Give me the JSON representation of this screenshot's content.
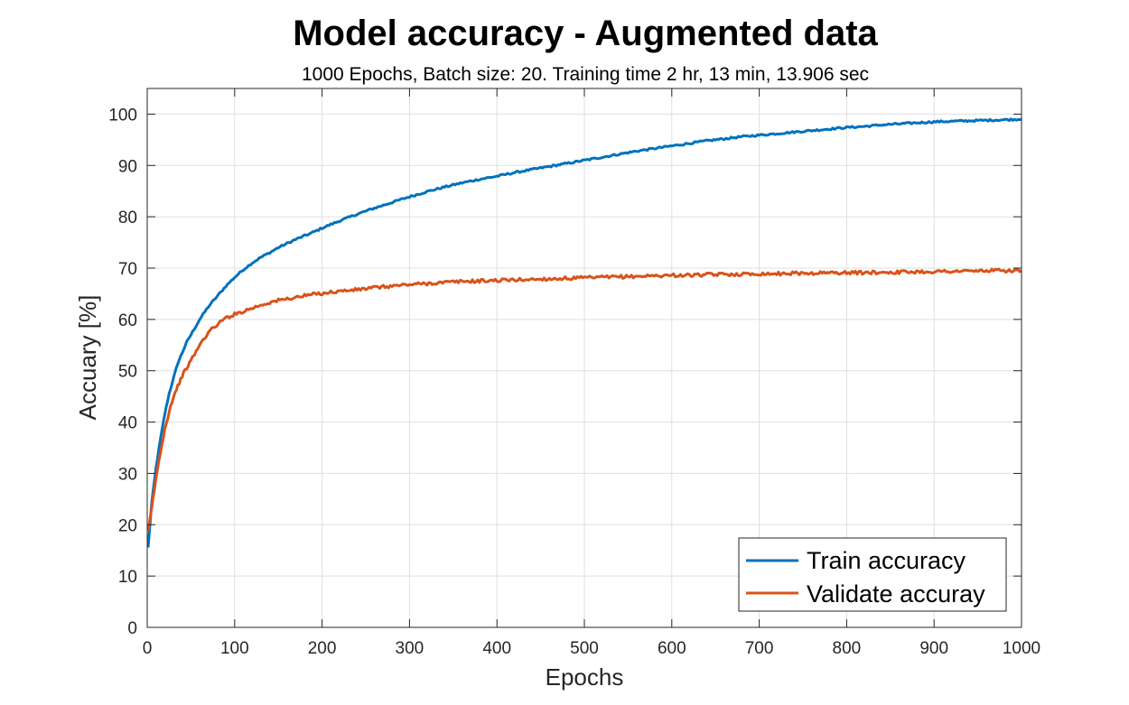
{
  "chart_data": {
    "type": "line",
    "title": "Model accuracy - Augmented data",
    "subtitle": "1000 Epochs, Batch size: 20. Training time 2 hr, 13 min, 13.906 sec",
    "xlabel": "Epochs",
    "ylabel": "Accuary [%]",
    "xlim": [
      0,
      1000
    ],
    "ylim": [
      0,
      105
    ],
    "xticks": [
      0,
      100,
      200,
      300,
      400,
      500,
      600,
      700,
      800,
      900,
      1000
    ],
    "yticks": [
      0,
      10,
      20,
      30,
      40,
      50,
      60,
      70,
      80,
      90,
      100
    ],
    "grid": true,
    "legend_position": "bottom-right",
    "series": [
      {
        "name": "Train accuracy",
        "color": "#0072BD",
        "x": [
          1,
          5,
          10,
          15,
          20,
          25,
          30,
          35,
          40,
          45,
          50,
          60,
          70,
          80,
          90,
          100,
          110,
          120,
          130,
          140,
          150,
          160,
          170,
          180,
          190,
          200,
          220,
          240,
          260,
          280,
          300,
          320,
          340,
          360,
          380,
          400,
          420,
          440,
          460,
          480,
          500,
          520,
          540,
          560,
          580,
          600,
          620,
          640,
          660,
          680,
          700,
          720,
          740,
          760,
          780,
          800,
          820,
          840,
          860,
          880,
          900,
          920,
          940,
          960,
          980,
          1000
        ],
        "y": [
          15.5,
          24,
          31,
          36.5,
          41.5,
          45.5,
          48.5,
          51.5,
          53.5,
          55.5,
          57,
          60,
          62.5,
          64.5,
          66.5,
          68.2,
          69.7,
          71,
          72.1,
          73,
          74,
          74.8,
          75.6,
          76.3,
          77,
          77.8,
          79.2,
          80.5,
          81.7,
          82.8,
          83.9,
          84.9,
          85.8,
          86.6,
          87.3,
          87.9,
          88.6,
          89.2,
          89.8,
          90.4,
          91,
          91.6,
          92.2,
          92.8,
          93.3,
          93.8,
          94.3,
          94.8,
          95.2,
          95.6,
          95.9,
          96.2,
          96.5,
          96.8,
          97.1,
          97.4,
          97.6,
          97.9,
          98.1,
          98.3,
          98.5,
          98.6,
          98.7,
          98.8,
          98.9,
          99
        ]
      },
      {
        "name": "Validate accuray",
        "color": "#D95319",
        "x": [
          1,
          5,
          10,
          15,
          20,
          25,
          30,
          35,
          40,
          45,
          50,
          60,
          70,
          80,
          90,
          100,
          110,
          120,
          130,
          140,
          150,
          160,
          170,
          180,
          190,
          200,
          220,
          240,
          260,
          280,
          300,
          320,
          340,
          360,
          380,
          400,
          420,
          440,
          460,
          480,
          500,
          520,
          540,
          560,
          580,
          600,
          620,
          640,
          660,
          680,
          700,
          720,
          740,
          760,
          780,
          800,
          820,
          840,
          860,
          880,
          900,
          920,
          940,
          960,
          980,
          1000
        ],
        "y": [
          18.5,
          23,
          29,
          34,
          38.5,
          42,
          45,
          47,
          49,
          50.5,
          52,
          55,
          57.5,
          59,
          60.3,
          61,
          61.6,
          62.2,
          62.8,
          63.3,
          63.7,
          64,
          64.3,
          64.6,
          64.9,
          65.1,
          65.5,
          65.8,
          66.2,
          66.5,
          66.8,
          67,
          67.2,
          67.4,
          67.5,
          67.6,
          67.7,
          67.8,
          67.9,
          68,
          68.1,
          68.2,
          68.3,
          68.4,
          68.5,
          68.6,
          68.6,
          68.7,
          68.8,
          68.8,
          68.9,
          68.9,
          69,
          69,
          69.1,
          69.1,
          69.1,
          69.2,
          69.2,
          69.3,
          69.3,
          69.4,
          69.4,
          69.5,
          69.5,
          69.5
        ]
      }
    ]
  }
}
